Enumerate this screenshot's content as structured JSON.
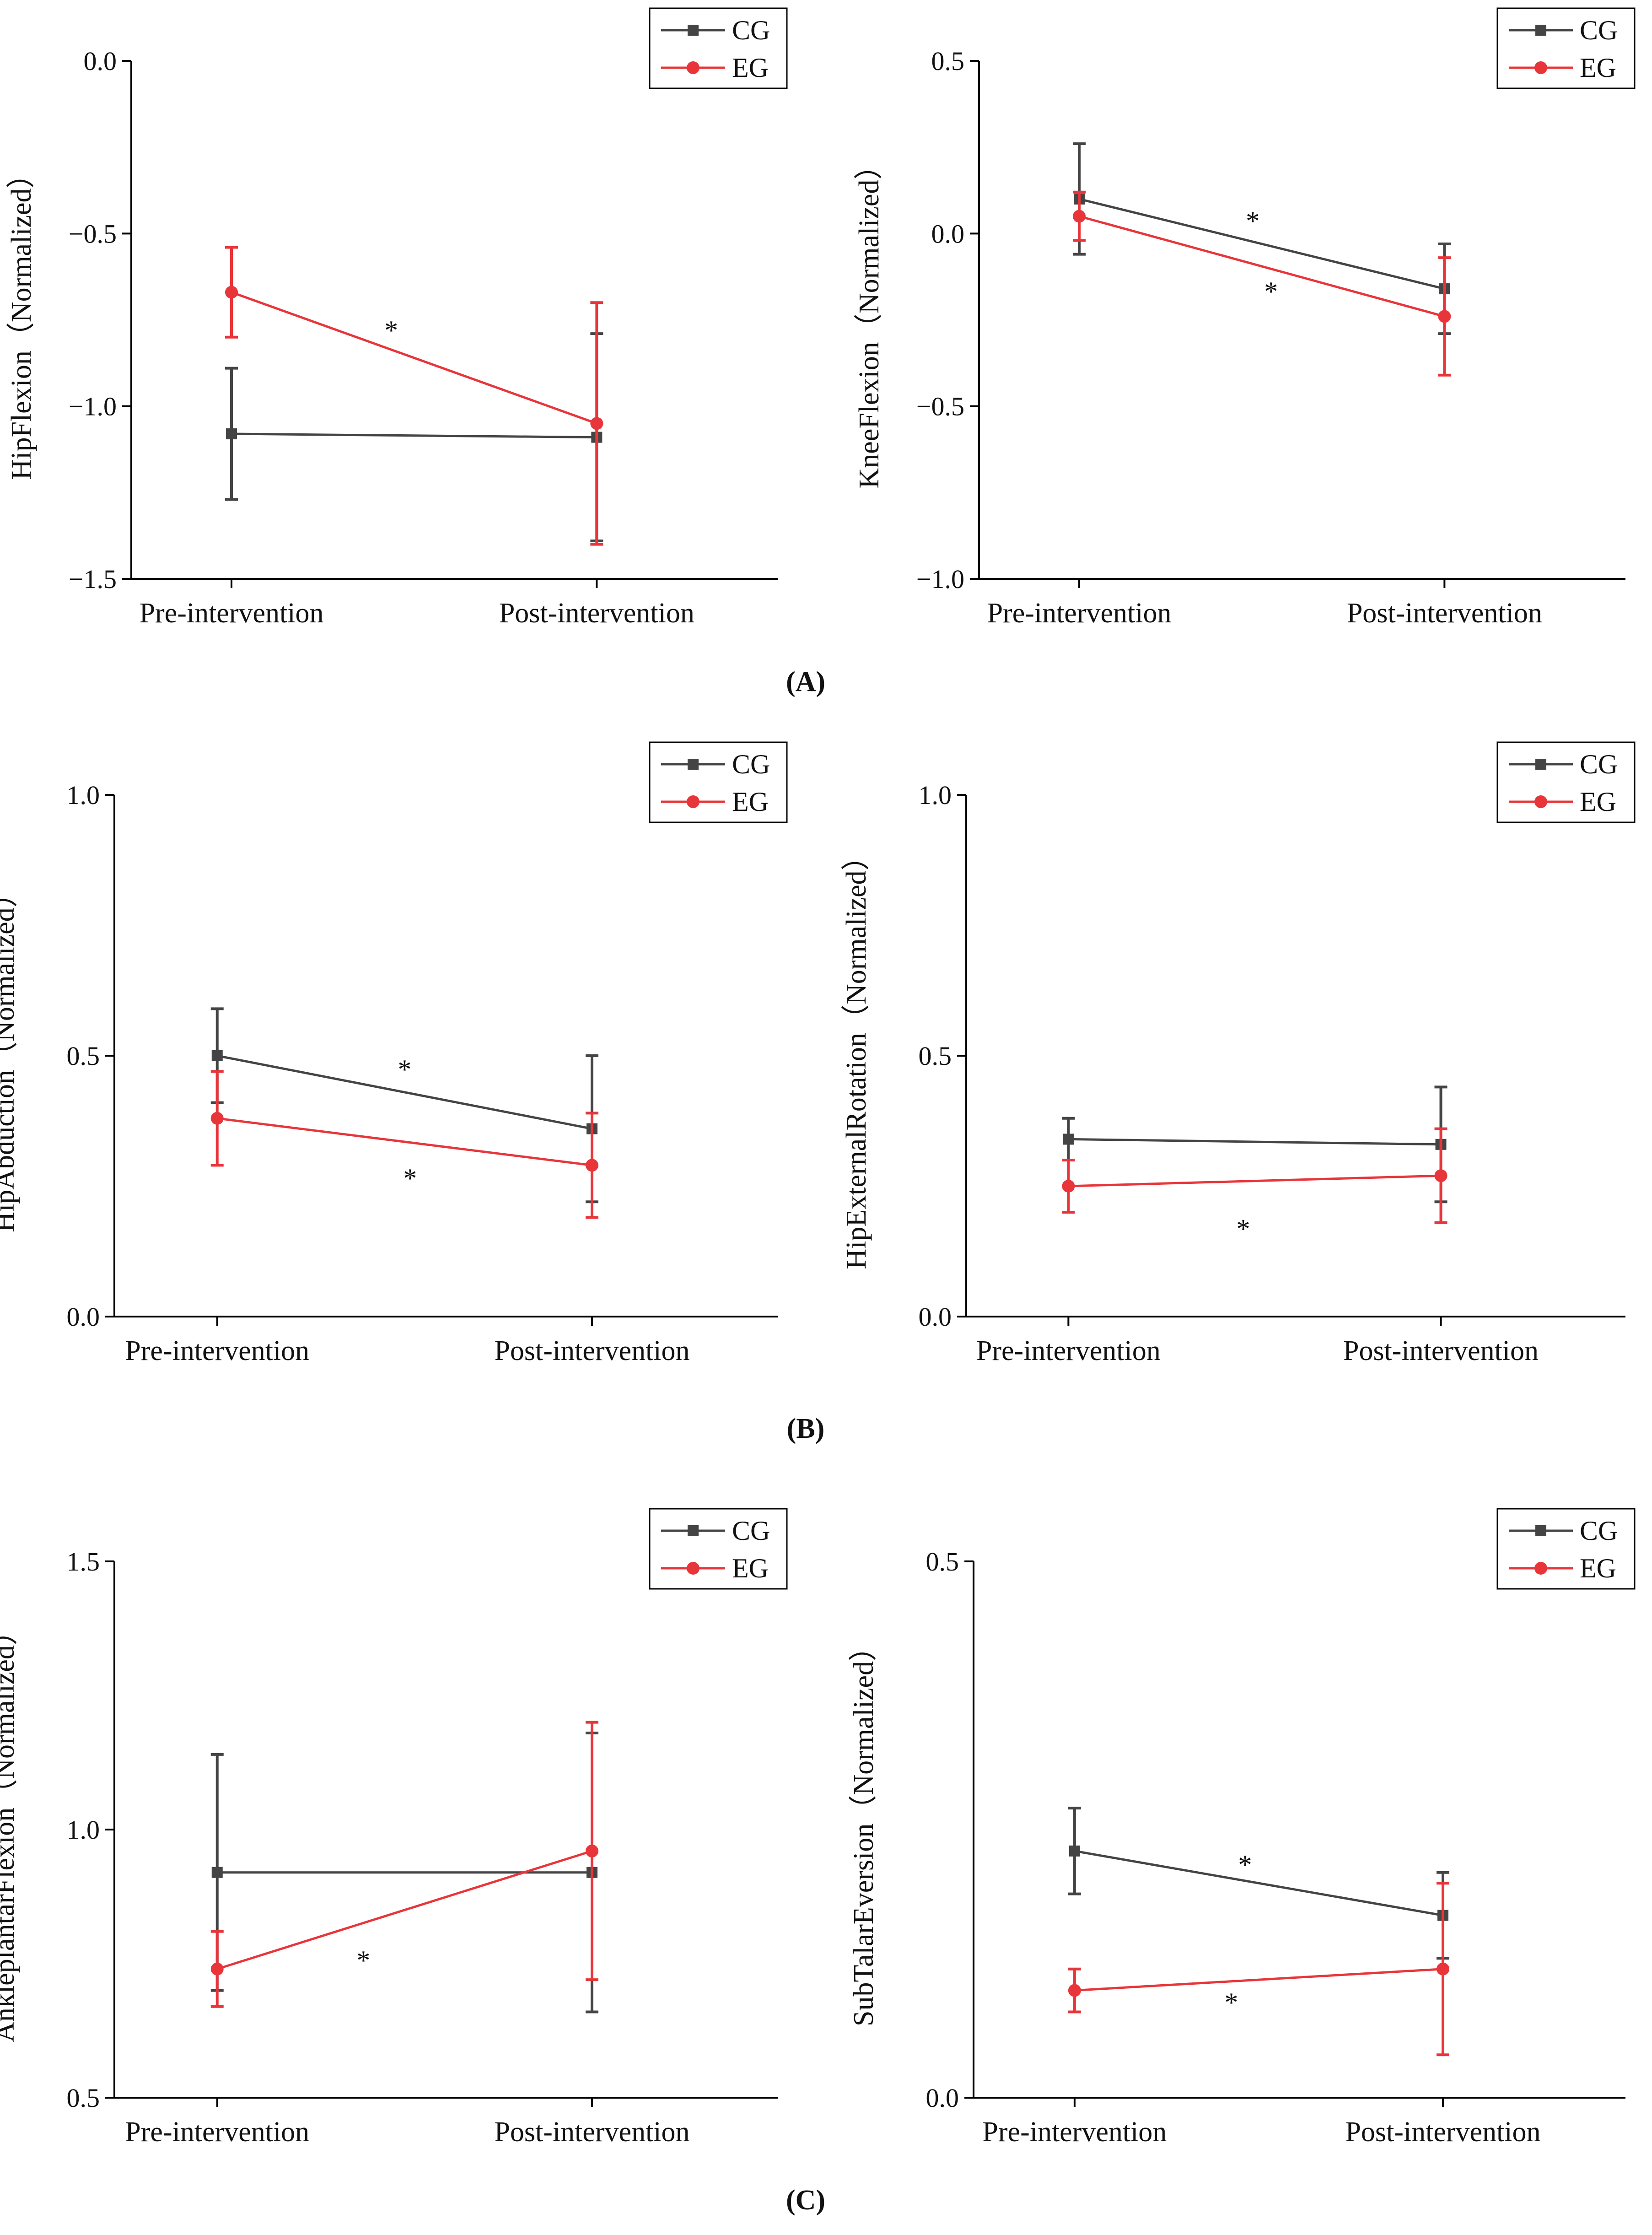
{
  "figure": {
    "panel_labels": [
      "(A)",
      "(B)",
      "(C)"
    ]
  },
  "colors": {
    "CG": "#444444",
    "EG": "#e8353a",
    "axis": "#000000",
    "text": "#111111"
  },
  "chart_data": [
    {
      "type": "line",
      "panel": "A",
      "xlabel": "",
      "ylabel": "HipFlexion（Normalized）",
      "categories": [
        "Pre-intervention",
        "Post-intervention"
      ],
      "ylim": [
        -1.5,
        0.0
      ],
      "yticks": [
        0.0,
        -0.5,
        -1.0,
        -1.5
      ],
      "ytick_labels": [
        "0.0",
        "−0.5",
        "−1.0",
        "−1.5"
      ],
      "legend": {
        "position": "top-right",
        "entries": [
          "CG",
          "EG"
        ]
      },
      "series": [
        {
          "name": "CG",
          "values": [
            -1.08,
            -1.09
          ],
          "err_low": [
            0.19,
            0.3
          ],
          "err_high": [
            0.19,
            0.3
          ]
        },
        {
          "name": "EG",
          "values": [
            -0.67,
            -1.05
          ],
          "err_low": [
            0.13,
            0.35
          ],
          "err_high": [
            0.13,
            0.35
          ]
        }
      ],
      "annotations": [
        {
          "text": "*",
          "series": "EG"
        }
      ]
    },
    {
      "type": "line",
      "panel": "A",
      "xlabel": "",
      "ylabel": "KneeFlexion（Normalized）",
      "categories": [
        "Pre-intervention",
        "Post-intervention"
      ],
      "ylim": [
        -1.0,
        0.5
      ],
      "yticks": [
        0.5,
        0.0,
        -0.5,
        -1.0
      ],
      "ytick_labels": [
        "0.5",
        "0.0",
        "−0.5",
        "−1.0"
      ],
      "legend": {
        "position": "top-right",
        "entries": [
          "CG",
          "EG"
        ]
      },
      "series": [
        {
          "name": "CG",
          "values": [
            0.1,
            -0.16
          ],
          "err_low": [
            0.16,
            0.13
          ],
          "err_high": [
            0.16,
            0.13
          ]
        },
        {
          "name": "EG",
          "values": [
            0.05,
            -0.24
          ],
          "err_low": [
            0.07,
            0.17
          ],
          "err_high": [
            0.07,
            0.17
          ]
        }
      ],
      "annotations": [
        {
          "text": "*",
          "series": "CG"
        },
        {
          "text": "*",
          "series": "EG"
        }
      ]
    },
    {
      "type": "line",
      "panel": "B",
      "xlabel": "",
      "ylabel": "HipAbduction（Normalized）",
      "categories": [
        "Pre-intervention",
        "Post-intervention"
      ],
      "ylim": [
        0.0,
        1.0
      ],
      "yticks": [
        1.0,
        0.5,
        0.0
      ],
      "ytick_labels": [
        "1.0",
        "0.5",
        "0.0"
      ],
      "legend": {
        "position": "top-right",
        "entries": [
          "CG",
          "EG"
        ]
      },
      "series": [
        {
          "name": "CG",
          "values": [
            0.5,
            0.36
          ],
          "err_low": [
            0.09,
            0.14
          ],
          "err_high": [
            0.09,
            0.14
          ]
        },
        {
          "name": "EG",
          "values": [
            0.38,
            0.29
          ],
          "err_low": [
            0.09,
            0.1
          ],
          "err_high": [
            0.09,
            0.1
          ]
        }
      ],
      "annotations": [
        {
          "text": "*",
          "series": "CG"
        },
        {
          "text": "*",
          "series": "EG"
        }
      ]
    },
    {
      "type": "line",
      "panel": "B",
      "xlabel": "",
      "ylabel": "HipExternalRotation（Normalized）",
      "categories": [
        "Pre-intervention",
        "Post-intervention"
      ],
      "ylim": [
        0.0,
        1.0
      ],
      "yticks": [
        1.0,
        0.5,
        0.0
      ],
      "ytick_labels": [
        "1.0",
        "0.5",
        "0.0"
      ],
      "legend": {
        "position": "top-right",
        "entries": [
          "CG",
          "EG"
        ]
      },
      "series": [
        {
          "name": "CG",
          "values": [
            0.34,
            0.33
          ],
          "err_low": [
            0.04,
            0.11
          ],
          "err_high": [
            0.04,
            0.11
          ]
        },
        {
          "name": "EG",
          "values": [
            0.25,
            0.27
          ],
          "err_low": [
            0.05,
            0.09
          ],
          "err_high": [
            0.05,
            0.09
          ]
        }
      ],
      "annotations": [
        {
          "text": "*",
          "series": "EG"
        }
      ]
    },
    {
      "type": "line",
      "panel": "C",
      "xlabel": "",
      "ylabel": "AnkleplantarFlexion（Normalized）",
      "categories": [
        "Pre-intervention",
        "Post-intervention"
      ],
      "ylim": [
        0.5,
        1.5
      ],
      "yticks": [
        1.5,
        1.0,
        0.5
      ],
      "ytick_labels": [
        "1.5",
        "1.0",
        "0.5"
      ],
      "legend": {
        "position": "top-right",
        "entries": [
          "CG",
          "EG"
        ]
      },
      "series": [
        {
          "name": "CG",
          "values": [
            0.92,
            0.92
          ],
          "err_low": [
            0.22,
            0.26
          ],
          "err_high": [
            0.22,
            0.26
          ]
        },
        {
          "name": "EG",
          "values": [
            0.74,
            0.96
          ],
          "err_low": [
            0.07,
            0.24
          ],
          "err_high": [
            0.07,
            0.24
          ]
        }
      ],
      "annotations": [
        {
          "text": "*",
          "series": "EG"
        }
      ]
    },
    {
      "type": "line",
      "panel": "C",
      "xlabel": "",
      "ylabel": "SubTalarEversion（Normalized）",
      "categories": [
        "Pre-intervention",
        "Post-intervention"
      ],
      "ylim": [
        0.0,
        0.5
      ],
      "yticks": [
        0.5,
        0.0
      ],
      "ytick_labels": [
        "0.5",
        "0.0"
      ],
      "legend": {
        "position": "top-right",
        "entries": [
          "CG",
          "EG"
        ]
      },
      "series": [
        {
          "name": "CG",
          "values": [
            0.23,
            0.17
          ],
          "err_low": [
            0.04,
            0.04
          ],
          "err_high": [
            0.04,
            0.04
          ]
        },
        {
          "name": "EG",
          "values": [
            0.1,
            0.12
          ],
          "err_low": [
            0.02,
            0.08
          ],
          "err_high": [
            0.02,
            0.08
          ]
        }
      ],
      "annotations": [
        {
          "text": "*",
          "series": "CG"
        },
        {
          "text": "*",
          "series": "EG"
        }
      ]
    }
  ]
}
